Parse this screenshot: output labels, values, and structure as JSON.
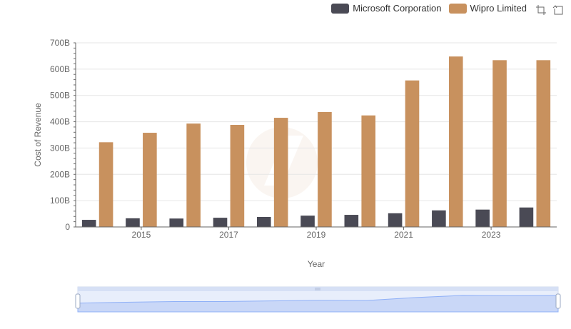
{
  "legend": {
    "series_1": "Microsoft Corporation",
    "series_2": "Wipro Limited"
  },
  "toolbox": {
    "zoom_icon": "zoom-icon",
    "restore_icon": "restore-icon"
  },
  "chart_data": {
    "type": "bar",
    "title": "",
    "xlabel": "Year",
    "ylabel": "Cost of Revenue",
    "categories": [
      "2014",
      "2015",
      "2016",
      "2017",
      "2018",
      "2019",
      "2020",
      "2021",
      "2022",
      "2023",
      "2024"
    ],
    "x_tick_labels": [
      "2015",
      "2017",
      "2019",
      "2021",
      "2023"
    ],
    "y_tick_labels": [
      "0",
      "100B",
      "200B",
      "300B",
      "400B",
      "500B",
      "600B",
      "700B"
    ],
    "ylim": [
      0,
      700
    ],
    "y_unit": "B",
    "series": [
      {
        "name": "Microsoft Corporation",
        "color": "#4a4a55",
        "values": [
          27,
          33,
          32,
          35,
          38,
          43,
          46,
          52,
          63,
          66,
          74
        ]
      },
      {
        "name": "Wipro Limited",
        "color": "#c8915e",
        "values": [
          322,
          358,
          393,
          388,
          415,
          437,
          424,
          557,
          648,
          634,
          634
        ]
      }
    ],
    "grid": true,
    "legend_position": "top-right",
    "has_data_zoom_slider": true
  }
}
